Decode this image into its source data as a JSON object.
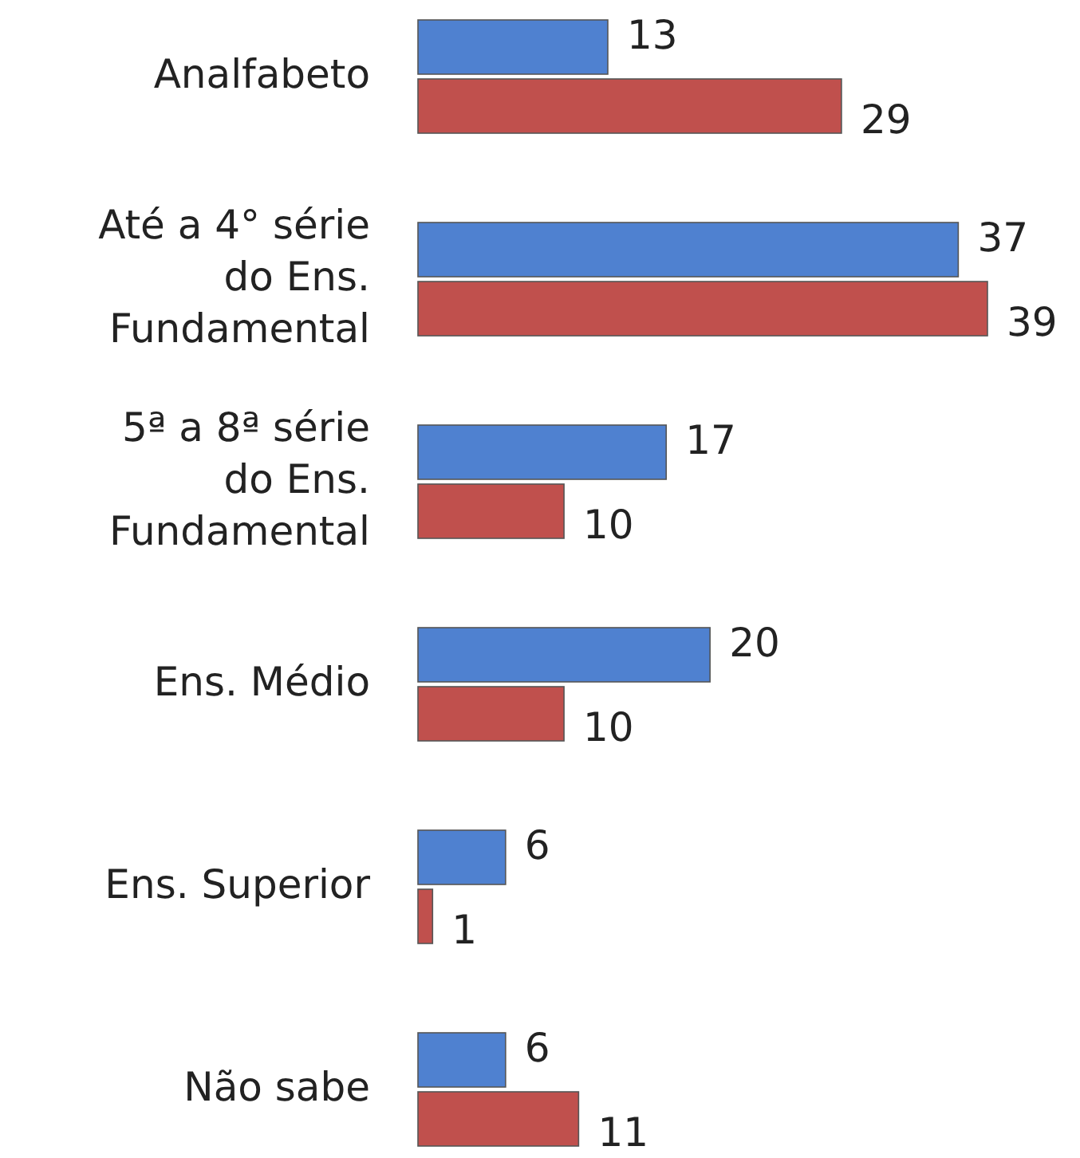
{
  "chart_data": {
    "type": "bar",
    "orientation": "horizontal",
    "data_labels": true,
    "categories": [
      "Analfabeto",
      "Até a 4° série do Ens. Fundamental",
      "5ª a 8ª série do Ens. Fundamental",
      "Ens. Médio",
      "Ens. Superior",
      "Não sabe"
    ],
    "series": [
      {
        "color": "#4f81d0",
        "values": [
          13,
          37,
          17,
          20,
          6,
          6
        ]
      },
      {
        "color": "#c0504d",
        "values": [
          29,
          39,
          10,
          10,
          1,
          11
        ]
      }
    ]
  }
}
